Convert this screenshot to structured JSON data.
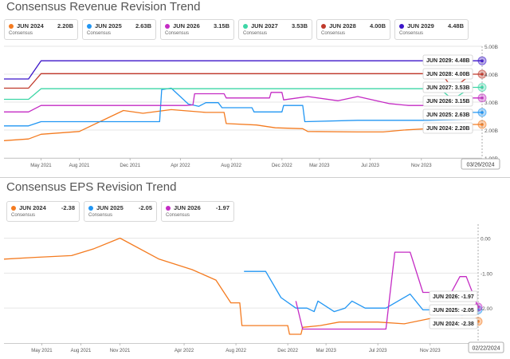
{
  "revenue": {
    "title": "Consensus Revenue Revision Trend",
    "legend": [
      {
        "name": "JUN 2024",
        "value": "2.20B",
        "sub": "Consensus",
        "color": "#f47b20"
      },
      {
        "name": "JUN 2025",
        "value": "2.63B",
        "sub": "Consensus",
        "color": "#2196f3"
      },
      {
        "name": "JUN 2026",
        "value": "3.15B",
        "sub": "Consensus",
        "color": "#c42bc4"
      },
      {
        "name": "JUN 2027",
        "value": "3.53B",
        "sub": "Consensus",
        "color": "#3dd6a6"
      },
      {
        "name": "JUN 2028",
        "value": "4.00B",
        "sub": "Consensus",
        "color": "#c0392b"
      },
      {
        "name": "JUN 2029",
        "value": "4.48B",
        "sub": "Consensus",
        "color": "#3b15c9"
      }
    ],
    "tooltip_date": "03/26/2024",
    "yticks": [
      "5.00B",
      "4.00B",
      "3.00B",
      "2.00B",
      "1.00B"
    ],
    "xticks": [
      "May 2021",
      "Aug 2021",
      "Dec 2021",
      "Apr 2022",
      "Aug 2022",
      "Dec 2022",
      "Mar 2023",
      "Jul 2023",
      "Nov 2023"
    ]
  },
  "eps": {
    "title": "Consensus EPS Revision Trend",
    "legend": [
      {
        "name": "JUN 2024",
        "value": "-2.38",
        "sub": "Consensus",
        "color": "#f47b20"
      },
      {
        "name": "JUN 2025",
        "value": "-2.05",
        "sub": "Consensus",
        "color": "#2196f3"
      },
      {
        "name": "JUN 2026",
        "value": "-1.97",
        "sub": "Consensus",
        "color": "#c42bc4"
      }
    ],
    "tooltip_date": "02/22/2024",
    "yticks": [
      "0.00",
      "-1.00",
      "-2.00"
    ],
    "xticks": [
      "May 2021",
      "Aug 2021",
      "Nov 2021",
      "Apr 2022",
      "Aug 2022",
      "Dec 2022",
      "Mar 2023",
      "Jul 2023",
      "Nov 2023"
    ]
  },
  "chart_data": [
    {
      "type": "line",
      "title": "Consensus Revenue Revision Trend",
      "xlabel": "",
      "ylabel": "",
      "ylim": [
        1.0,
        5.0
      ],
      "xlim": [
        "2021-02-01",
        "2024-03-26"
      ],
      "series": [
        {
          "name": "JUN 2024",
          "color": "#f47b20",
          "label": "JUN 2024: 2.20B",
          "points": [
            [
              "2021-02-01",
              1.62
            ],
            [
              "2021-04-01",
              1.68
            ],
            [
              "2021-05-01",
              1.85
            ],
            [
              "2021-08-01",
              1.95
            ],
            [
              "2021-11-15",
              2.7
            ],
            [
              "2022-01-01",
              2.6
            ],
            [
              "2022-03-10",
              2.73
            ],
            [
              "2022-06-01",
              2.63
            ],
            [
              "2022-07-15",
              2.63
            ],
            [
              "2022-07-20",
              2.23
            ],
            [
              "2022-10-01",
              2.18
            ],
            [
              "2022-11-15",
              2.08
            ],
            [
              "2023-01-20",
              2.05
            ],
            [
              "2023-02-01",
              1.95
            ],
            [
              "2023-06-01",
              1.93
            ],
            [
              "2023-08-01",
              1.93
            ],
            [
              "2023-09-20",
              2.0
            ],
            [
              "2024-01-15",
              2.1
            ],
            [
              "2024-02-10",
              2.2
            ],
            [
              "2024-03-26",
              2.2
            ]
          ]
        },
        {
          "name": "JUN 2025",
          "color": "#2196f3",
          "label": "JUN 2025: 2.63B",
          "points": [
            [
              "2021-02-01",
              2.15
            ],
            [
              "2021-04-01",
              2.15
            ],
            [
              "2021-05-01",
              2.3
            ],
            [
              "2022-02-10",
              2.3
            ],
            [
              "2022-02-15",
              3.45
            ],
            [
              "2022-03-10",
              3.5
            ],
            [
              "2022-04-20",
              2.93
            ],
            [
              "2022-05-15",
              2.85
            ],
            [
              "2022-06-01",
              2.98
            ],
            [
              "2022-07-01",
              2.98
            ],
            [
              "2022-07-10",
              2.8
            ],
            [
              "2022-09-20",
              2.8
            ],
            [
              "2022-09-25",
              2.65
            ],
            [
              "2022-12-01",
              2.65
            ],
            [
              "2022-12-05",
              2.88
            ],
            [
              "2023-01-20",
              2.88
            ],
            [
              "2023-01-25",
              2.3
            ],
            [
              "2023-06-01",
              2.35
            ],
            [
              "2023-08-01",
              2.35
            ],
            [
              "2023-11-15",
              2.35
            ],
            [
              "2024-02-15",
              2.38
            ],
            [
              "2024-03-01",
              2.63
            ],
            [
              "2024-03-26",
              2.63
            ]
          ]
        },
        {
          "name": "JUN 2026",
          "color": "#c42bc4",
          "label": "JUN 2026: 3.15B",
          "points": [
            [
              "2021-02-01",
              2.65
            ],
            [
              "2021-04-01",
              2.65
            ],
            [
              "2021-05-01",
              2.88
            ],
            [
              "2022-04-15",
              2.88
            ],
            [
              "2022-05-01",
              2.9
            ],
            [
              "2022-05-05",
              3.3
            ],
            [
              "2022-07-15",
              3.3
            ],
            [
              "2022-07-20",
              3.15
            ],
            [
              "2022-11-01",
              3.15
            ],
            [
              "2022-11-05",
              3.35
            ],
            [
              "2022-12-01",
              3.35
            ],
            [
              "2022-12-05",
              3.08
            ],
            [
              "2023-02-01",
              3.2
            ],
            [
              "2023-04-15",
              3.05
            ],
            [
              "2023-06-01",
              3.2
            ],
            [
              "2023-08-15",
              2.95
            ],
            [
              "2023-10-01",
              2.88
            ],
            [
              "2024-02-01",
              2.88
            ],
            [
              "2024-03-01",
              3.15
            ],
            [
              "2024-03-26",
              3.15
            ]
          ]
        },
        {
          "name": "JUN 2027",
          "color": "#3dd6a6",
          "label": "JUN 2027: 3.53B",
          "points": [
            [
              "2021-02-01",
              3.1
            ],
            [
              "2021-04-01",
              3.1
            ],
            [
              "2021-05-01",
              3.48
            ],
            [
              "2023-12-15",
              3.48
            ],
            [
              "2024-01-15",
              3.1
            ],
            [
              "2024-03-01",
              3.53
            ],
            [
              "2024-03-26",
              3.53
            ]
          ]
        },
        {
          "name": "JUN 2028",
          "color": "#c0392b",
          "label": "JUN 2028: 4.00B",
          "points": [
            [
              "2021-02-01",
              3.5
            ],
            [
              "2021-04-01",
              3.5
            ],
            [
              "2021-05-01",
              4.02
            ],
            [
              "2023-12-20",
              4.02
            ],
            [
              "2024-01-15",
              3.48
            ],
            [
              "2024-03-01",
              4.0
            ],
            [
              "2024-03-26",
              4.0
            ]
          ]
        },
        {
          "name": "JUN 2029",
          "color": "#3b15c9",
          "label": "JUN 2029: 4.48B",
          "points": [
            [
              "2021-02-01",
              3.83
            ],
            [
              "2021-04-01",
              3.83
            ],
            [
              "2021-05-01",
              4.48
            ],
            [
              "2024-03-26",
              4.48
            ]
          ]
        }
      ]
    },
    {
      "type": "line",
      "title": "Consensus EPS Revision Trend",
      "xlabel": "",
      "ylabel": "",
      "ylim": [
        -3.0,
        0.4
      ],
      "xlim": [
        "2021-02-01",
        "2024-02-22"
      ],
      "series": [
        {
          "name": "JUN 2024",
          "color": "#f47b20",
          "label": "JUN 2024: -2.38",
          "points": [
            [
              "2021-02-01",
              -0.6
            ],
            [
              "2021-04-15",
              -0.55
            ],
            [
              "2021-07-10",
              -0.5
            ],
            [
              "2021-09-01",
              -0.3
            ],
            [
              "2021-11-01",
              0.0
            ],
            [
              "2022-02-01",
              -0.6
            ],
            [
              "2022-04-20",
              -0.9
            ],
            [
              "2022-06-15",
              -1.2
            ],
            [
              "2022-07-20",
              -1.85
            ],
            [
              "2022-08-10",
              -1.85
            ],
            [
              "2022-08-15",
              -2.5
            ],
            [
              "2022-12-01",
              -2.5
            ],
            [
              "2022-12-05",
              -2.75
            ],
            [
              "2023-01-01",
              -2.75
            ],
            [
              "2023-01-05",
              -2.55
            ],
            [
              "2023-02-15",
              -2.5
            ],
            [
              "2023-04-01",
              -2.4
            ],
            [
              "2023-07-01",
              -2.4
            ],
            [
              "2023-09-01",
              -2.45
            ],
            [
              "2023-11-01",
              -2.3
            ],
            [
              "2023-12-15",
              -2.4
            ],
            [
              "2024-01-15",
              -2.3
            ],
            [
              "2024-02-22",
              -2.38
            ]
          ]
        },
        {
          "name": "JUN 2025",
          "color": "#2196f3",
          "label": "JUN 2025: -2.05",
          "points": [
            [
              "2022-08-20",
              -0.95
            ],
            [
              "2022-10-10",
              -0.95
            ],
            [
              "2022-11-15",
              -1.7
            ],
            [
              "2022-12-20",
              -2.0
            ],
            [
              "2023-01-15",
              -2.0
            ],
            [
              "2023-02-01",
              -2.1
            ],
            [
              "2023-02-10",
              -1.8
            ],
            [
              "2023-03-20",
              -2.1
            ],
            [
              "2023-04-15",
              -2.0
            ],
            [
              "2023-05-01",
              -1.8
            ],
            [
              "2023-06-01",
              -2.0
            ],
            [
              "2023-07-20",
              -2.0
            ],
            [
              "2023-09-15",
              -1.6
            ],
            [
              "2023-10-15",
              -2.05
            ],
            [
              "2023-12-01",
              -2.05
            ],
            [
              "2024-01-15",
              -2.2
            ],
            [
              "2024-02-22",
              -2.05
            ]
          ]
        },
        {
          "name": "JUN 2026",
          "color": "#c42bc4",
          "label": "JUN 2026: -1.97",
          "points": [
            [
              "2022-12-20",
              -1.8
            ],
            [
              "2023-01-05",
              -2.6
            ],
            [
              "2023-07-20",
              -2.6
            ],
            [
              "2023-08-10",
              -0.4
            ],
            [
              "2023-09-15",
              -0.4
            ],
            [
              "2023-10-15",
              -1.55
            ],
            [
              "2023-11-15",
              -1.55
            ],
            [
              "2023-12-10",
              -1.8
            ],
            [
              "2024-01-10",
              -1.1
            ],
            [
              "2024-01-25",
              -1.1
            ],
            [
              "2024-02-22",
              -1.97
            ]
          ]
        }
      ]
    }
  ]
}
